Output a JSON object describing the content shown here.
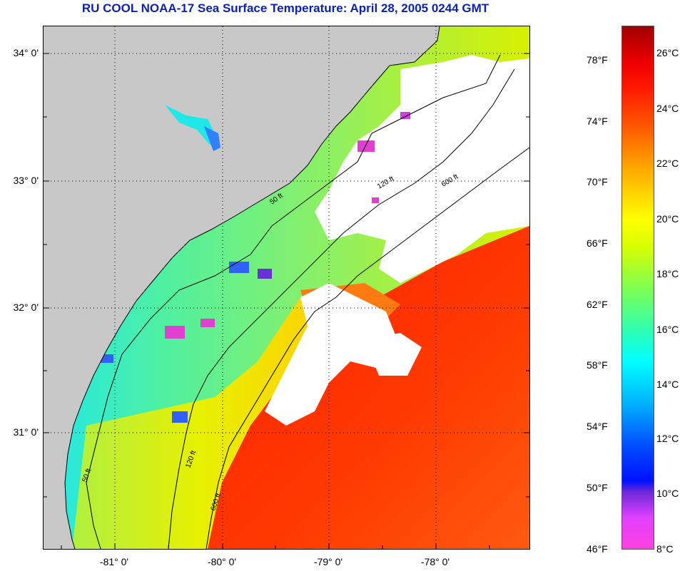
{
  "title": "RU COOL  NOAA-17  Sea Surface Temperature:  April 28, 2005 0244 GMT",
  "map": {
    "lat_ticks": [
      "34° 0'",
      "33° 0'",
      "32° 0'",
      "31° 0'"
    ],
    "lon_ticks": [
      "-81° 0'",
      "-80° 0'",
      "-79° 0'",
      "-78° 0'"
    ],
    "contour_labels": [
      "50 ft",
      "120 ft",
      "600 ft"
    ],
    "colors": {
      "land": "#c8c8c8",
      "cloud": "#ffffff",
      "warm_gulf_stream": "#ff2a00",
      "shelf_cool": "#70f070",
      "coastal_cyan": "#20e8e8"
    }
  },
  "colorbar": {
    "fahrenheit_labels": [
      "78°F",
      "74°F",
      "70°F",
      "66°F",
      "62°F",
      "58°F",
      "54°F",
      "50°F",
      "46°F"
    ],
    "celsius_labels": [
      "26°C",
      "24°C",
      "22°C",
      "20°C",
      "18°C",
      "16°C",
      "14°C",
      "12°C",
      "10°C",
      "8°C"
    ]
  }
}
